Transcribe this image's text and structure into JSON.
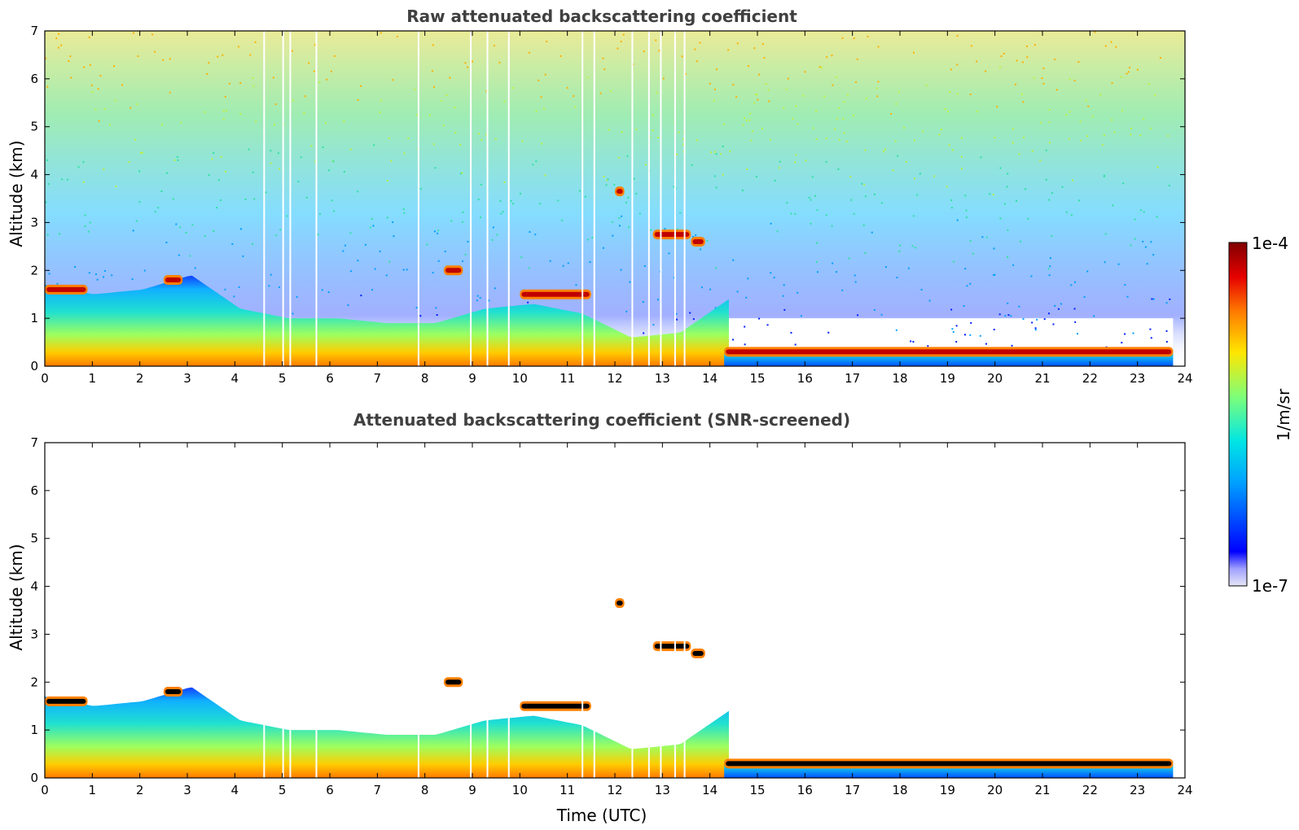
{
  "chart_data": [
    {
      "type": "heatmap",
      "title": "Raw attenuated backscattering coefficient",
      "xlabel": "",
      "ylabel": "Altitude (km)",
      "xlim": [
        0,
        24
      ],
      "ylim": [
        0,
        7
      ],
      "xticks": [
        "0",
        "1",
        "2",
        "3",
        "4",
        "5",
        "6",
        "7",
        "8",
        "9",
        "10",
        "11",
        "12",
        "13",
        "14",
        "15",
        "16",
        "17",
        "18",
        "19",
        "20",
        "21",
        "22",
        "23",
        "24"
      ],
      "yticks": [
        "0",
        "1",
        "2",
        "3",
        "4",
        "5",
        "6",
        "7"
      ],
      "layers": [
        {
          "name": "boundary layer aerosol",
          "time_range": [
            0,
            14.4
          ],
          "top_km": [
            1.7,
            1.5,
            1.6,
            1.9,
            1.2,
            1.0,
            1.0,
            0.9,
            0.9,
            1.2,
            1.3,
            1.1,
            0.6,
            0.7,
            1.4
          ]
        },
        {
          "name": "low cloud",
          "time_range": [
            14.3,
            23.75
          ],
          "altitude_km": 0.3
        },
        {
          "name": "cloud 1.6 km",
          "time_range": [
            0,
            0.9
          ],
          "altitude_km": 1.6
        },
        {
          "name": "cloud 1.8 km",
          "time_range": [
            2.5,
            2.9
          ],
          "altitude_km": 1.8
        },
        {
          "name": "cloud 2.0 km",
          "time_range": [
            8.4,
            8.8
          ],
          "altitude_km": 2.0
        },
        {
          "name": "cloud 1.6-1.4 km",
          "time_range": [
            10.0,
            11.5
          ],
          "altitude_km": 1.5
        },
        {
          "name": "cloud 3.7 km",
          "time_range": [
            12.0,
            12.2
          ],
          "altitude_km": 3.65
        },
        {
          "name": "cloud 2.7 km",
          "time_range": [
            12.8,
            13.6
          ],
          "altitude_km": 2.75
        },
        {
          "name": "cloud 2.6 km",
          "time_range": [
            13.6,
            13.9
          ],
          "altitude_km": 2.6
        }
      ]
    },
    {
      "type": "heatmap",
      "title": "Attenuated backscattering coefficient (SNR-screened)",
      "xlabel": "Time (UTC)",
      "ylabel": "Altitude (km)",
      "xlim": [
        0,
        24
      ],
      "ylim": [
        0,
        7
      ],
      "xticks": [
        "0",
        "1",
        "2",
        "3",
        "4",
        "5",
        "6",
        "7",
        "8",
        "9",
        "10",
        "11",
        "12",
        "13",
        "14",
        "15",
        "16",
        "17",
        "18",
        "19",
        "20",
        "21",
        "22",
        "23",
        "24"
      ],
      "yticks": [
        "0",
        "1",
        "2",
        "3",
        "4",
        "5",
        "6",
        "7"
      ]
    }
  ],
  "colorbar": {
    "label": "1/m/sr",
    "max_label": "1e-4",
    "min_label": "1e-7",
    "scale": "log",
    "range": [
      1e-07,
      0.0001
    ]
  },
  "colors": {
    "low": "#e6e6f5",
    "blue": "#0000ff",
    "cyan": "#00d5ff",
    "green": "#7dff7a",
    "yellow": "#ffe600",
    "orange": "#ff7a00",
    "red": "#e60000",
    "dark_red": "#800000"
  }
}
